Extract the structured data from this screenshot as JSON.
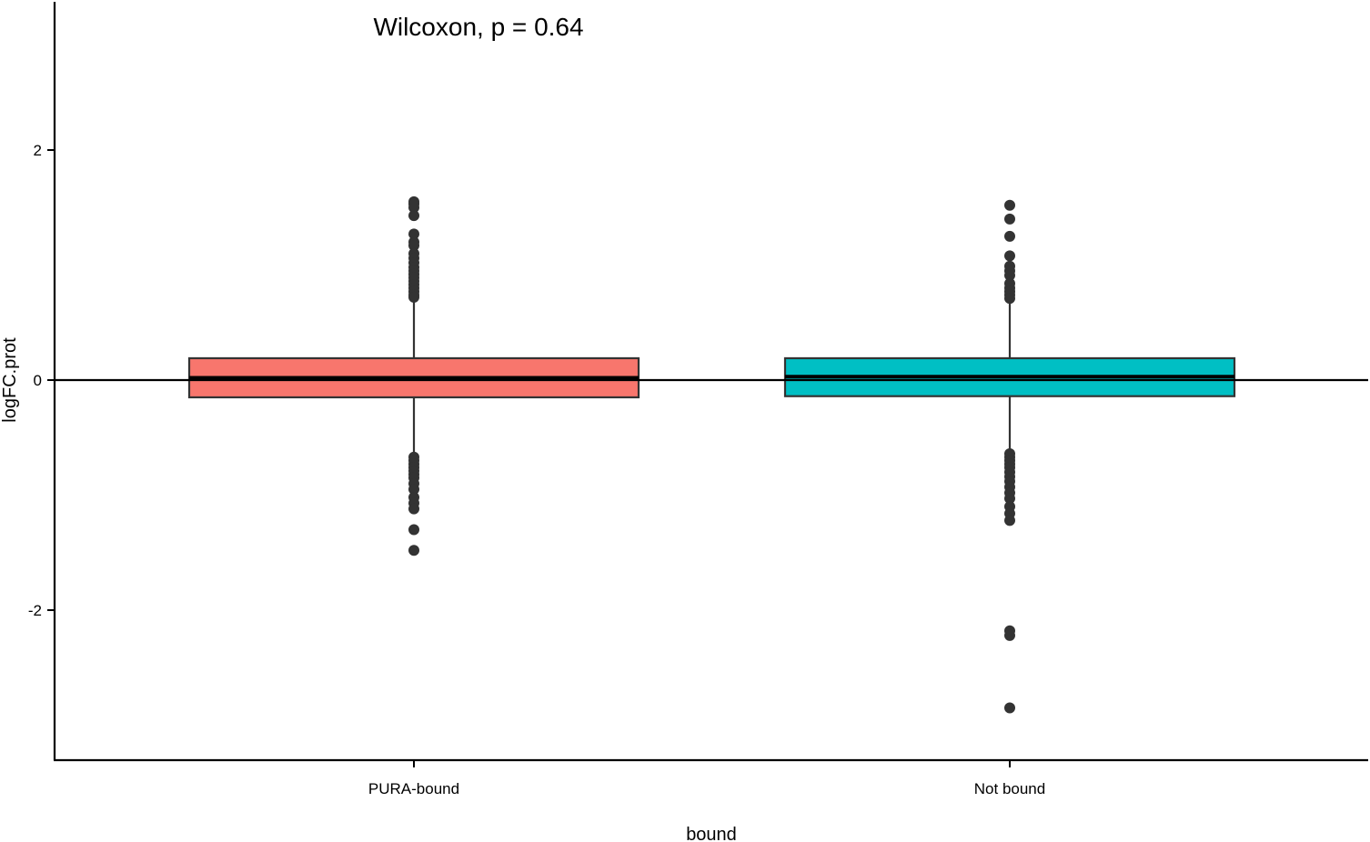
{
  "chart_data": {
    "type": "box",
    "xlabel": "bound",
    "ylabel": "logFC.prot",
    "ylim": [
      -3.3,
      3.3
    ],
    "y_ticks": [
      {
        "value": -2,
        "label": "-2"
      },
      {
        "value": 0,
        "label": "0"
      },
      {
        "value": 2,
        "label": "2"
      }
    ],
    "categories": [
      "PURA-bound",
      "Not bound"
    ],
    "annotation": "Wilcoxon, p = 0.64",
    "reference_line_y": 0,
    "legend": "none",
    "grid": false,
    "series": [
      {
        "category": "PURA-bound",
        "color": "#F8766D",
        "lower_whisker": -0.7,
        "q1": -0.15,
        "median": 0.02,
        "q3": 0.19,
        "upper_whisker": 0.68,
        "outliers": [
          1.55,
          1.53,
          1.5,
          1.43,
          1.27,
          1.2,
          1.17,
          1.1,
          1.06,
          1.02,
          0.98,
          0.95,
          0.92,
          0.89,
          0.86,
          0.83,
          0.8,
          0.77,
          0.74,
          0.72,
          -0.67,
          -0.7,
          -0.73,
          -0.76,
          -0.79,
          -0.82,
          -0.85,
          -0.9,
          -0.95,
          -1.02,
          -1.07,
          -1.12,
          -1.3,
          -1.48
        ]
      },
      {
        "category": "Not bound",
        "color": "#00BFC4",
        "lower_whisker": -0.66,
        "q1": -0.14,
        "median": 0.03,
        "q3": 0.19,
        "upper_whisker": 0.67,
        "outliers": [
          1.52,
          1.4,
          1.25,
          1.08,
          0.99,
          0.95,
          0.91,
          0.84,
          0.8,
          0.77,
          0.74,
          0.71,
          -0.64,
          -0.67,
          -0.7,
          -0.73,
          -0.76,
          -0.8,
          -0.84,
          -0.88,
          -0.93,
          -0.98,
          -1.03,
          -1.1,
          -1.16,
          -1.22,
          -2.18,
          -2.22,
          -2.85
        ]
      }
    ]
  }
}
